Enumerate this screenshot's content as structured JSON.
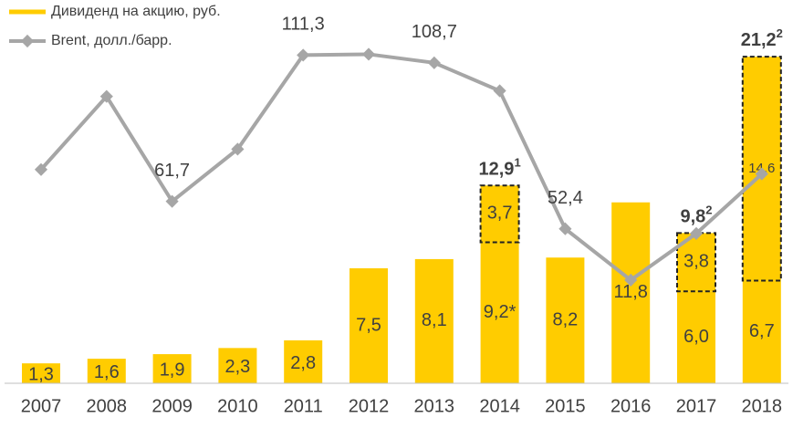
{
  "chart_data": {
    "type": "bar",
    "categories": [
      "2007",
      "2008",
      "2009",
      "2010",
      "2011",
      "2012",
      "2013",
      "2014",
      "2015",
      "2016",
      "2017",
      "2018"
    ],
    "series": [
      {
        "name": "Дивиденд на акцию, руб.",
        "color": "#ffcc00",
        "type": "bar",
        "values": [
          1.3,
          1.6,
          1.9,
          2.3,
          2.8,
          7.5,
          8.1,
          9.2,
          8.2,
          11.8,
          6.0,
          6.7
        ],
        "value_labels": [
          "1,3",
          "1,6",
          "1,9",
          "2,3",
          "2,8",
          "7,5",
          "8,1",
          "9,2*",
          "8,2",
          "11,8",
          "6,0",
          "6,7"
        ]
      },
      {
        "name": "Brent, долл./барр.",
        "color": "#a6a6a6",
        "type": "line",
        "axis": "y2",
        "values": [
          72.5,
          97.3,
          61.7,
          79.4,
          111.3,
          111.6,
          108.7,
          99.2,
          52.4,
          35,
          50.8,
          71
        ],
        "value_labels": [
          null,
          null,
          "61,7",
          null,
          "111,3",
          null,
          "108,7",
          null,
          "52,4",
          null,
          null,
          null
        ]
      }
    ],
    "stack": {
      "values": [
        null,
        null,
        null,
        null,
        null,
        null,
        null,
        3.7,
        null,
        null,
        3.8,
        14.6
      ],
      "value_labels": [
        null,
        null,
        null,
        null,
        null,
        null,
        null,
        "3,7",
        null,
        null,
        "3,8",
        "14,6"
      ]
    },
    "totals": {
      "values": [
        null,
        null,
        null,
        null,
        null,
        null,
        null,
        12.9,
        null,
        null,
        9.8,
        21.2
      ],
      "value_labels": [
        null,
        null,
        null,
        null,
        null,
        null,
        null,
        "12,9",
        null,
        null,
        "9,8",
        "21,2"
      ],
      "notes": [
        null,
        null,
        null,
        null,
        null,
        null,
        null,
        "1",
        null,
        null,
        "2",
        "2"
      ]
    },
    "ylim": [
      0,
      25
    ],
    "y2lim": [
      0,
      130
    ]
  }
}
